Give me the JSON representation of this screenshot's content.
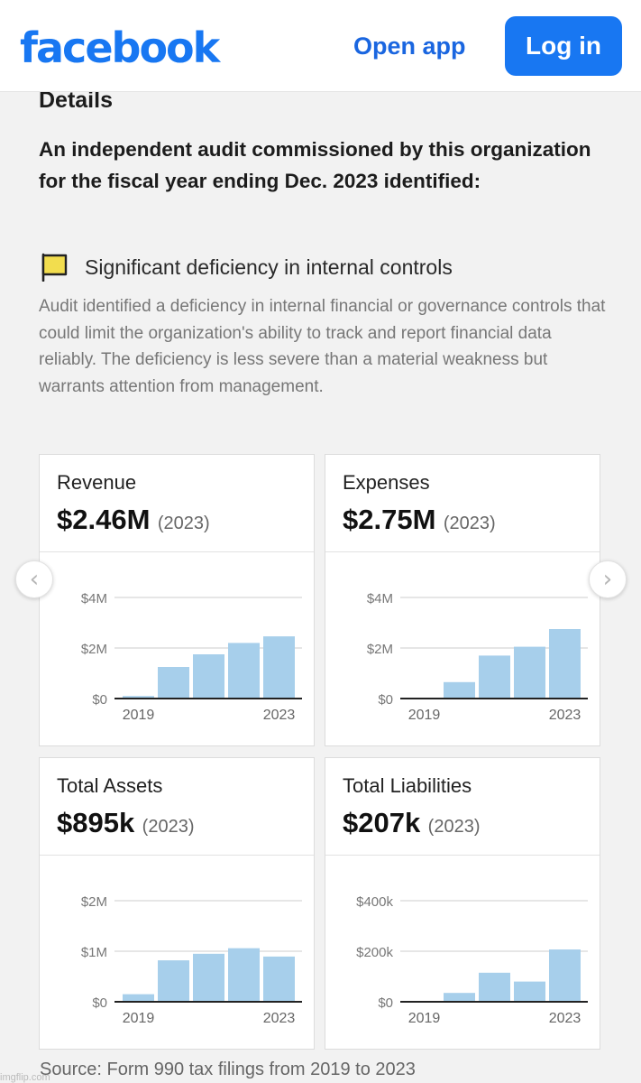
{
  "header": {
    "logo": "facebook",
    "open_app_label": "Open app",
    "login_label": "Log in"
  },
  "details": {
    "heading": "Details",
    "intro": "An independent audit commissioned by this organization for the fiscal year ending Dec. 2023 identified:",
    "finding_title": "Significant deficiency in internal controls",
    "finding_description": "Audit identified a deficiency in internal financial or governance controls that could limit the organization's ability to track and report financial data reliably. The deficiency is less severe than a material weakness but warrants attention from management."
  },
  "nav": {
    "prev_icon": "chevron-left-icon",
    "next_icon": "chevron-right-icon"
  },
  "colors": {
    "bar": "#a7cfeb",
    "accent": "#1877f2",
    "flag": "#f2dd4e"
  },
  "cards": [
    {
      "label": "Revenue",
      "value": "$2.46M",
      "year": "(2023)"
    },
    {
      "label": "Expenses",
      "value": "$2.75M",
      "year": "(2023)"
    },
    {
      "label": "Total Assets",
      "value": "$895k",
      "year": "(2023)"
    },
    {
      "label": "Total Liabilities",
      "value": "$207k",
      "year": "(2023)"
    }
  ],
  "chart_data": [
    {
      "type": "bar",
      "title": "Revenue",
      "categories": [
        "2019",
        "2020",
        "2021",
        "2022",
        "2023"
      ],
      "values": [
        0.1,
        1.25,
        1.75,
        2.2,
        2.46
      ],
      "unit": "millions USD",
      "ylim": [
        0,
        4
      ],
      "yticks": [
        0,
        2,
        4
      ],
      "ytick_labels": [
        "$0",
        "$2M",
        "$4M"
      ],
      "xtick_labels": [
        "2019",
        "2023"
      ],
      "grid": true
    },
    {
      "type": "bar",
      "title": "Expenses",
      "categories": [
        "2019",
        "2020",
        "2021",
        "2022",
        "2023"
      ],
      "values": [
        0,
        0.65,
        1.7,
        2.05,
        2.75
      ],
      "unit": "millions USD",
      "ylim": [
        0,
        4
      ],
      "yticks": [
        0,
        2,
        4
      ],
      "ytick_labels": [
        "$0",
        "$2M",
        "$4M"
      ],
      "xtick_labels": [
        "2019",
        "2023"
      ],
      "grid": true
    },
    {
      "type": "bar",
      "title": "Total Assets",
      "categories": [
        "2019",
        "2020",
        "2021",
        "2022",
        "2023"
      ],
      "values": [
        0.15,
        0.82,
        0.95,
        1.06,
        0.895
      ],
      "unit": "millions USD",
      "ylim": [
        0,
        2
      ],
      "yticks": [
        0,
        1,
        2
      ],
      "ytick_labels": [
        "$0",
        "$1M",
        "$2M"
      ],
      "xtick_labels": [
        "2019",
        "2023"
      ],
      "grid": true
    },
    {
      "type": "bar",
      "title": "Total Liabilities",
      "categories": [
        "2019",
        "2020",
        "2021",
        "2022",
        "2023"
      ],
      "values": [
        0,
        35,
        115,
        80,
        207
      ],
      "unit": "thousands USD",
      "ylim": [
        0,
        400
      ],
      "yticks": [
        0,
        200,
        400
      ],
      "ytick_labels": [
        "$0",
        "$200k",
        "$400k"
      ],
      "xtick_labels": [
        "2019",
        "2023"
      ],
      "grid": true
    }
  ],
  "footer": {
    "source": "Source: Form 990 tax filings from 2019 to 2023",
    "watermark": "imgflip.com"
  }
}
